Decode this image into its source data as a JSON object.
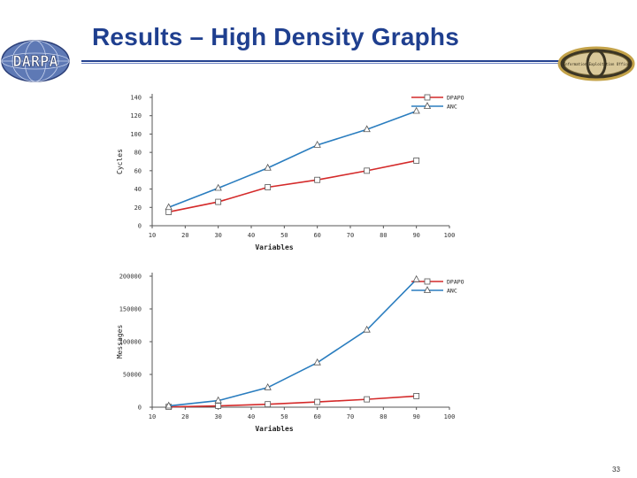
{
  "slide": {
    "title": "Results – High Density Graphs",
    "page_number": "33"
  },
  "logos": {
    "left": {
      "text": "DARPA",
      "icon": "darpa-globe-logo"
    },
    "right": {
      "text": "Information Exploitation Office",
      "icon": "ixo-seal-logo"
    }
  },
  "colors": {
    "title": "#1f3f8f",
    "dpapo": "#d42a2a",
    "anc": "#2a7dbf"
  },
  "chart_data": [
    {
      "type": "line",
      "xlabel": "Variables",
      "ylabel": "Cycles",
      "xlim": [
        10,
        100
      ],
      "ylim": [
        0,
        140
      ],
      "x_ticks": [
        "10",
        "20",
        "30",
        "40",
        "50",
        "60",
        "70",
        "80",
        "90",
        "100"
      ],
      "y_ticks": [
        "0",
        "20",
        "40",
        "60",
        "80",
        "100",
        "120",
        "140"
      ],
      "legend": "top-right",
      "grid": false,
      "series": [
        {
          "name": "DPAPO",
          "color": "#d42a2a",
          "marker": "square",
          "x": [
            15,
            30,
            45,
            60,
            75,
            90
          ],
          "values": [
            15,
            26,
            42,
            50,
            60,
            71
          ]
        },
        {
          "name": "ANC",
          "color": "#2a7dbf",
          "marker": "triangle",
          "x": [
            15,
            30,
            45,
            60,
            75,
            90
          ],
          "values": [
            20,
            41,
            63,
            88,
            105,
            125
          ]
        }
      ]
    },
    {
      "type": "line",
      "xlabel": "Variables",
      "ylabel": "Messages",
      "xlim": [
        10,
        100
      ],
      "ylim": [
        0,
        200000
      ],
      "x_ticks": [
        "10",
        "20",
        "30",
        "40",
        "50",
        "60",
        "70",
        "80",
        "90",
        "100"
      ],
      "y_ticks": [
        "0",
        "50000",
        "100000",
        "150000",
        "200000"
      ],
      "legend": "top-right",
      "grid": false,
      "series": [
        {
          "name": "DPAPO",
          "color": "#d42a2a",
          "marker": "square",
          "x": [
            15,
            30,
            45,
            60,
            75,
            90
          ],
          "values": [
            500,
            2000,
            4500,
            8000,
            12000,
            17000
          ]
        },
        {
          "name": "ANC",
          "color": "#2a7dbf",
          "marker": "triangle",
          "x": [
            15,
            30,
            45,
            60,
            75,
            90
          ],
          "values": [
            2000,
            10000,
            30000,
            68000,
            118000,
            195000
          ]
        }
      ]
    }
  ]
}
